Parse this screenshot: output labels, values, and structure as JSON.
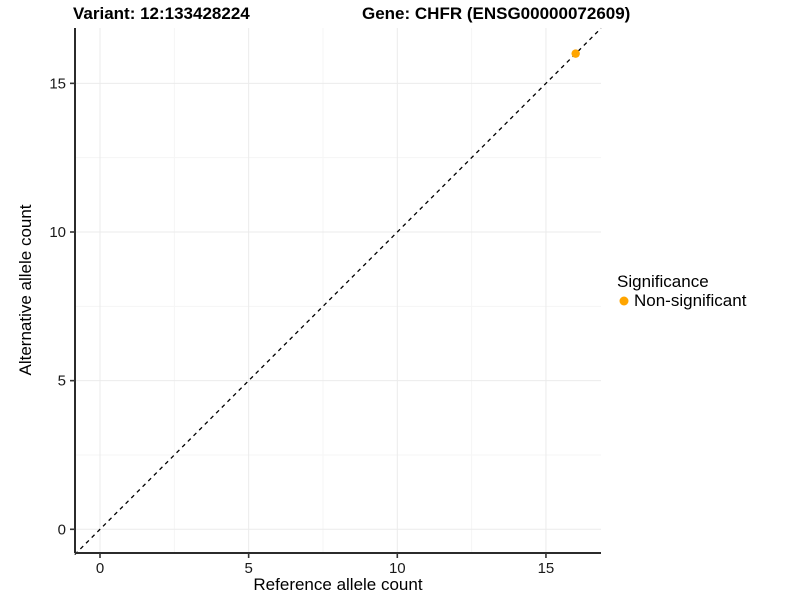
{
  "chart_data": {
    "type": "scatter",
    "title_left": "Variant: 12:133428224",
    "title_right": "Gene: CHFR (ENSG00000072609)",
    "xlabel": "Reference allele count",
    "ylabel": "Alternative allele count",
    "xlim": [
      -0.85,
      16.85
    ],
    "ylim": [
      -0.85,
      16.85
    ],
    "x_ticks": [
      0,
      5,
      10,
      15
    ],
    "y_ticks": [
      0,
      5,
      10,
      15
    ],
    "x_minor_ticks": [
      2.5,
      7.5,
      12.5
    ],
    "y_minor_ticks": [
      2.5,
      7.5,
      12.5
    ],
    "grid": "major and minor gridlines on white background",
    "legend_position": "right",
    "reference_line": {
      "style": "dashed",
      "color": "#000000",
      "equation": "y = x"
    },
    "series": [
      {
        "name": "Non-significant",
        "color": "#FFA500",
        "points": [
          {
            "x": 16,
            "y": 16
          }
        ]
      }
    ],
    "legend": {
      "title": "Significance",
      "entries": [
        {
          "label": "Non-significant",
          "color": "#FFA500"
        }
      ]
    }
  },
  "colors": {
    "point": "#FFA500",
    "axis": "#2b2b2b",
    "grid_major": "#ebebeb",
    "grid_minor": "#f5f5f5",
    "background": "#ffffff",
    "text": "#000000"
  }
}
